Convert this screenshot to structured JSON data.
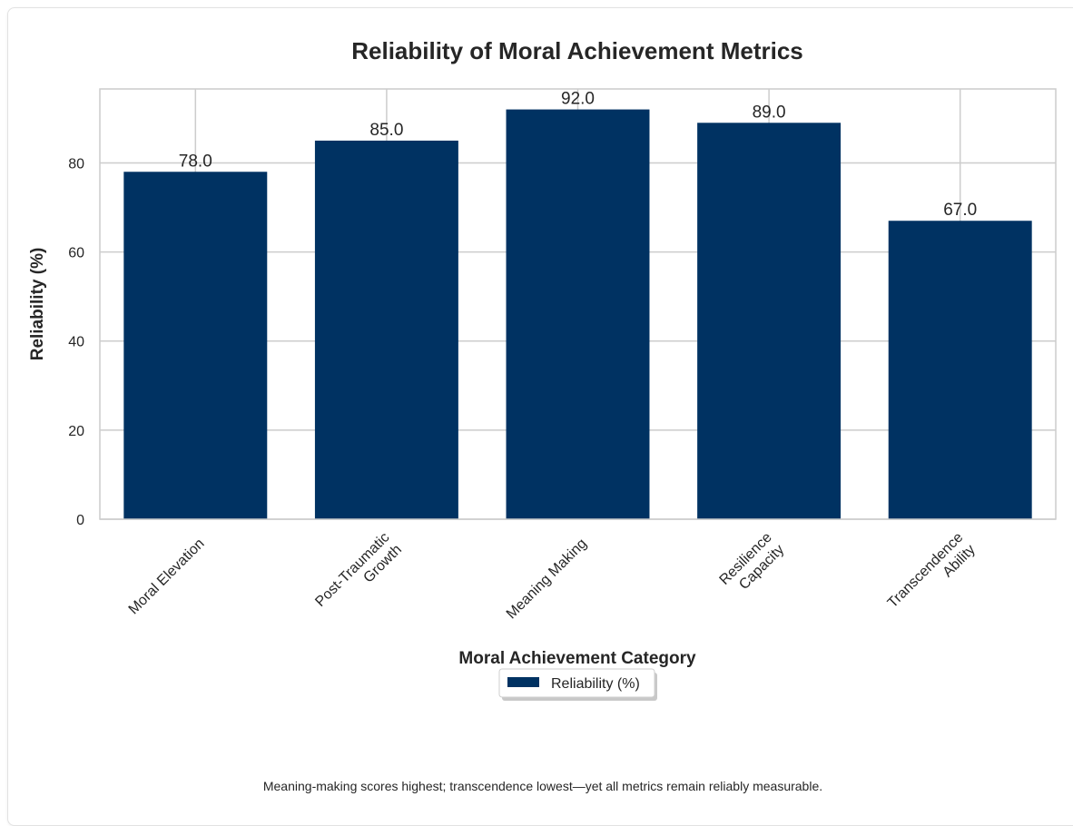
{
  "chart_data": {
    "type": "bar",
    "title": "Reliability of Moral Achievement Metrics",
    "xlabel": "Moral Achievement Category",
    "ylabel": "Reliability (%)",
    "categories": [
      [
        "Moral Elevation"
      ],
      [
        "Post-Traumatic",
        "Growth"
      ],
      [
        "Meaning Making"
      ],
      [
        "Resilience",
        "Capacity"
      ],
      [
        "Transcendence",
        "Ability"
      ]
    ],
    "series": [
      {
        "name": "Reliability (%)",
        "values": [
          78.0,
          85.0,
          92.0,
          89.0,
          67.0
        ],
        "color": "#003262"
      }
    ],
    "data_labels": [
      "78.0",
      "85.0",
      "92.0",
      "89.0",
      "67.0"
    ],
    "yticks": [
      0,
      20,
      40,
      60,
      80
    ],
    "ylim": [
      0,
      96.6
    ],
    "grid": true,
    "legend": {
      "position": "bottom-center",
      "entries": [
        "Reliability (%)"
      ]
    }
  },
  "caption": "Meaning-making scores highest; transcendence lowest—yet all metrics remain reliably measurable."
}
